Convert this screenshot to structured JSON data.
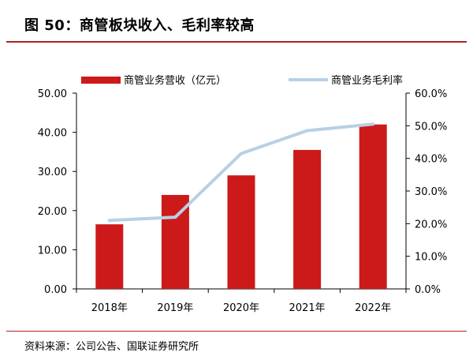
{
  "title": "图 50：商管板块收入、毛利率较高",
  "source": "资料来源：公司公告、国联证券研究所",
  "colors": {
    "bar": "#cc1a1a",
    "line": "#b8d0e6",
    "rule": "#b22222"
  },
  "chart_data": {
    "type": "bar+line",
    "categories": [
      "2018年",
      "2019年",
      "2020年",
      "2021年",
      "2022年"
    ],
    "series": [
      {
        "name": "商管业务营收（亿元）",
        "type": "bar",
        "axis": "left",
        "values": [
          16.5,
          24.0,
          29.0,
          35.5,
          42.0
        ]
      },
      {
        "name": "商管业务毛利率",
        "type": "line",
        "axis": "right",
        "values": [
          21.0,
          22.0,
          41.5,
          48.5,
          50.5
        ]
      }
    ],
    "y_left": {
      "min": 0,
      "max": 50,
      "ticks": [
        "0.00",
        "10.00",
        "20.00",
        "30.00",
        "40.00",
        "50.00"
      ]
    },
    "y_right": {
      "min": 0,
      "max": 60,
      "ticks": [
        "0.0%",
        "10.0%",
        "20.0%",
        "30.0%",
        "40.0%",
        "50.0%",
        "60.0%"
      ]
    },
    "legend_position": "top",
    "grid": false
  }
}
